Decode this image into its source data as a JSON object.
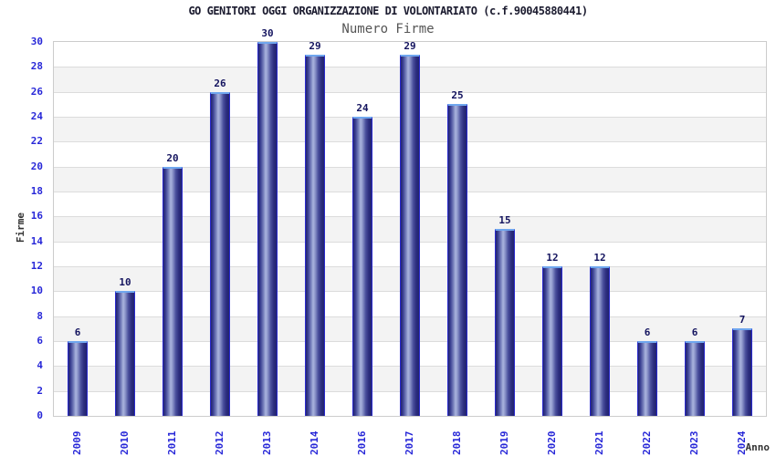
{
  "colors": {
    "background": "#ffffff",
    "title_text": "#1b1b2f",
    "subtitle_text": "#555555",
    "axis_title_text": "#333333",
    "tick_label_blue": "#2828d8",
    "bar_value_navy": "#14145f",
    "band_gray": "#f3f3f3",
    "band_white": "#ffffff",
    "gridline": "#dcdcdc",
    "plot_border": "#cccccc",
    "bar_edge_blue": "#2a2ace",
    "bar_body_dark": "#23246e",
    "bar_body_light": "#aab4de",
    "bar_top_cap": "#6fa6ee"
  },
  "chart_data": {
    "type": "bar",
    "title": "GO GENITORI OGGI ORGANIZZAZIONE DI VOLONTARIATO (c.f.90045880441)",
    "subtitle": "Numero Firme",
    "xlabel": "Anno",
    "ylabel": "Firme",
    "categories": [
      "2009",
      "2010",
      "2011",
      "2012",
      "2013",
      "2014",
      "2016",
      "2017",
      "2018",
      "2019",
      "2020",
      "2021",
      "2022",
      "2023",
      "2024"
    ],
    "values": [
      6,
      10,
      20,
      26,
      30,
      29,
      24,
      29,
      25,
      15,
      12,
      12,
      6,
      6,
      7
    ],
    "ylim": [
      0,
      30
    ],
    "ytick_step": 2,
    "yticks": [
      0,
      2,
      4,
      6,
      8,
      10,
      12,
      14,
      16,
      18,
      20,
      22,
      24,
      26,
      28,
      30
    ],
    "grid": "horizontal gridlines every 2 units with alternating white/gray bands",
    "legend_position": "none",
    "bar_labels_shown": true,
    "x_tick_rotation_deg": -90
  }
}
